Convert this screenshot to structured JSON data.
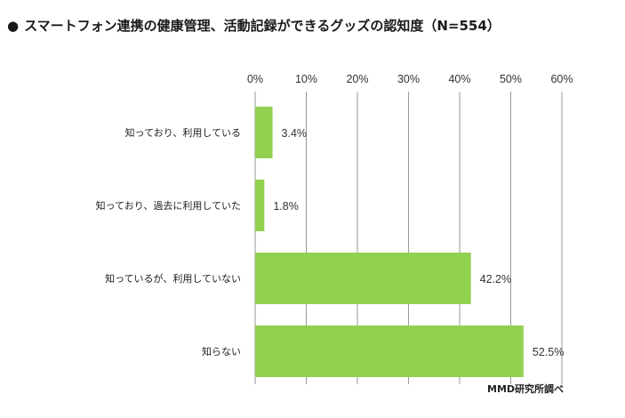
{
  "header": {
    "bullet": "●",
    "title": "スマートフォン連携の健康管理、活動記録ができるグッズの認知度（N=554）"
  },
  "chart_data": {
    "type": "bar",
    "orientation": "horizontal",
    "title": "スマートフォン連携の健康管理、活動記録ができるグッズの認知度（N=554）",
    "categories": [
      "知っており、利用している",
      "知っており、過去に利用していた",
      "知っているが、利用していない",
      "知らない"
    ],
    "values": [
      3.4,
      1.8,
      42.2,
      52.5
    ],
    "value_labels": [
      "3.4%",
      "1.8%",
      "42.2%",
      "52.5%"
    ],
    "xlim": [
      0,
      60
    ],
    "x_ticks": [
      0,
      10,
      20,
      30,
      40,
      50,
      60
    ],
    "x_tick_labels": [
      "0%",
      "10%",
      "20%",
      "30%",
      "40%",
      "50%",
      "60%"
    ],
    "x_axis_position": "top",
    "grid": true,
    "bar_color": "#92d050",
    "grid_color": "#999999"
  },
  "source": {
    "brand": "MMD",
    "suffix": "研究所調べ"
  }
}
